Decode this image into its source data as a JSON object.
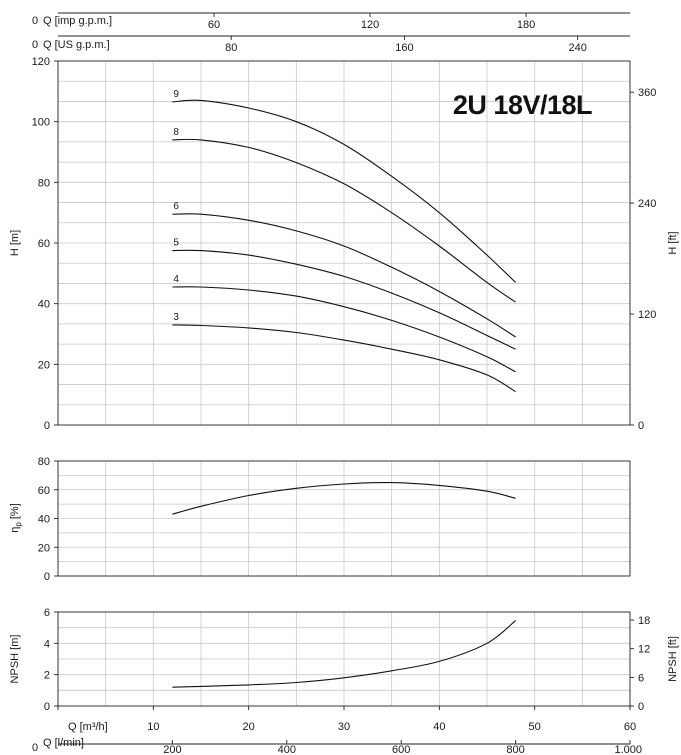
{
  "chart_data": [
    {
      "type": "line",
      "panel": "head",
      "title": "2U 18V/18L",
      "ylabel": "H [m]",
      "ylabel_right": "H [ft]",
      "ylim": [
        0,
        120
      ],
      "yticks": [
        0,
        20,
        40,
        60,
        80,
        100,
        120
      ],
      "ylim_right": [
        0,
        393.7
      ],
      "yticks_right": [
        0,
        120,
        240,
        360
      ],
      "top_axis_1": {
        "label": "Q [imp g.p.m.]",
        "zero": "0",
        "ticks": [
          60,
          120,
          180
        ]
      },
      "top_axis_2": {
        "label": "Q [US g.p.m.]",
        "zero": "0",
        "ticks": [
          80,
          160,
          240
        ]
      },
      "series": [
        {
          "name": "9",
          "x": [
            12,
            15,
            20,
            25,
            30,
            35,
            40,
            45,
            48
          ],
          "y": [
            106.5,
            107,
            104.5,
            100,
            92.5,
            82,
            70,
            56,
            47
          ]
        },
        {
          "name": "8",
          "x": [
            12,
            15,
            20,
            25,
            30,
            35,
            40,
            45,
            48
          ],
          "y": [
            94,
            94,
            91.5,
            86.5,
            79.5,
            70,
            59,
            47,
            40.5
          ]
        },
        {
          "name": "6",
          "x": [
            12,
            15,
            20,
            25,
            30,
            35,
            40,
            45,
            48
          ],
          "y": [
            69.5,
            69.5,
            67.5,
            64,
            59,
            52,
            44,
            35,
            29
          ]
        },
        {
          "name": "5",
          "x": [
            12,
            15,
            20,
            25,
            30,
            35,
            40,
            45,
            48
          ],
          "y": [
            57.5,
            57.5,
            56,
            53,
            49,
            43.5,
            37,
            29.5,
            25
          ]
        },
        {
          "name": "4",
          "x": [
            12,
            15,
            20,
            25,
            30,
            35,
            40,
            45,
            48
          ],
          "y": [
            45.5,
            45.5,
            44.5,
            42.5,
            39,
            34.5,
            29,
            22.5,
            17.5
          ]
        },
        {
          "name": "3",
          "x": [
            12,
            15,
            20,
            25,
            30,
            35,
            40,
            45,
            48
          ],
          "y": [
            33,
            32.8,
            32,
            30.5,
            28,
            25,
            21.5,
            16.5,
            11
          ]
        }
      ]
    },
    {
      "type": "line",
      "panel": "efficiency",
      "ylabel": "η",
      "ylabel_sub": "p",
      "ylabel_unit": " [%]",
      "ylim": [
        0,
        80
      ],
      "yticks": [
        0,
        20,
        40,
        60,
        80
      ],
      "series": [
        {
          "x": [
            12,
            15,
            20,
            25,
            30,
            35,
            40,
            45,
            48
          ],
          "y": [
            43,
            48.5,
            56,
            61,
            64,
            65,
            63,
            59,
            54
          ]
        }
      ]
    },
    {
      "type": "line",
      "panel": "npsh",
      "ylabel": "NPSH [m]",
      "ylabel_right": "NPSH [ft]",
      "ylim": [
        0,
        6
      ],
      "yticks": [
        0,
        2,
        4,
        6
      ],
      "ylim_right": [
        0,
        19.685
      ],
      "yticks_right": [
        0,
        6,
        12,
        18
      ],
      "xlabel_1": "Q [m³/h]",
      "xticks_1": [
        0,
        10,
        20,
        30,
        40,
        50,
        60
      ],
      "xlim_1": [
        0,
        60
      ],
      "xlabel_2": "Q [l/min]",
      "xzero_2": "0",
      "xticks_2_labels": [
        "200",
        "400",
        "600",
        "800",
        "1.000"
      ],
      "xticks_2_values": [
        200,
        400,
        600,
        800,
        1000
      ],
      "series": [
        {
          "x": [
            12,
            15,
            20,
            25,
            30,
            35,
            40,
            45,
            48
          ],
          "y": [
            1.2,
            1.25,
            1.35,
            1.5,
            1.8,
            2.25,
            2.85,
            4.0,
            5.45
          ]
        }
      ]
    }
  ]
}
